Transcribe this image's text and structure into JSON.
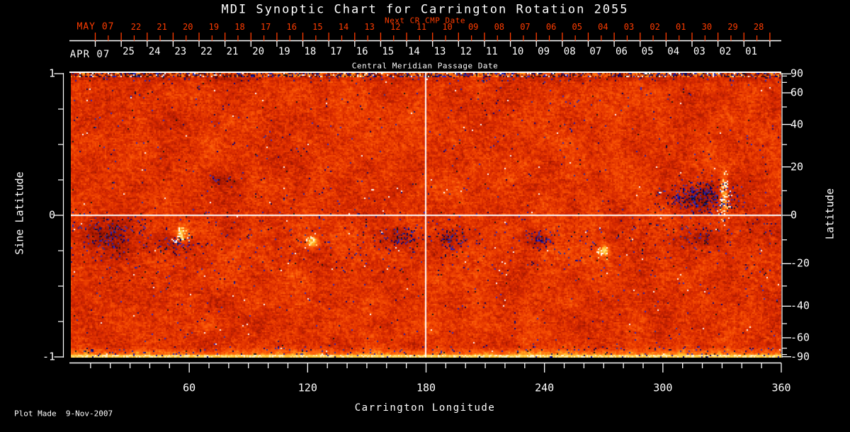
{
  "title": "MDI Synoptic Chart for Carrington Rotation 2055",
  "footer": "Plot Made  9-Nov-2007",
  "colors": {
    "background": "#000000",
    "text": "#ffffff",
    "accent_red": "#ff3c00",
    "magnetogram_base": "#e84400",
    "negative_flux": "#1c1cb0",
    "positive_flux": "#ffffff"
  },
  "top_axis": {
    "next_cr_label": "Next CR CMP Date",
    "red_month": "MAY 07",
    "red_days": [
      "22",
      "21",
      "20",
      "19",
      "18",
      "17",
      "16",
      "15",
      "14",
      "13",
      "12",
      "11",
      "10",
      "09",
      "08",
      "07",
      "06",
      "05",
      "04",
      "03",
      "02",
      "01",
      "30",
      "29",
      "28"
    ],
    "white_month": "APR 07",
    "white_days": [
      "25",
      "24",
      "23",
      "22",
      "21",
      "20",
      "19",
      "18",
      "17",
      "16",
      "15",
      "14",
      "13",
      "12",
      "11",
      "10",
      "09",
      "08",
      "07",
      "06",
      "05",
      "04",
      "03",
      "02",
      "01"
    ],
    "axis_title": "Central Meridian Passage Date"
  },
  "left_axis": {
    "title": "Sine Latitude",
    "ticks": [
      "1",
      "0",
      "-1"
    ]
  },
  "right_axis": {
    "title": "Latitude",
    "ticks": [
      "90",
      "60",
      "40",
      "20",
      "0",
      "-20",
      "-40",
      "-60",
      "-90"
    ]
  },
  "bottom_axis": {
    "title": "Carrington Longitude",
    "ticks": [
      "60",
      "120",
      "180",
      "240",
      "300",
      "360"
    ]
  },
  "chart_data": {
    "type": "heatmap",
    "title": "MDI Synoptic Chart for Carrington Rotation 2055",
    "xlabel": "Carrington Longitude",
    "ylabel_left": "Sine Latitude",
    "ylabel_right": "Latitude",
    "xlim": [
      0,
      360
    ],
    "x_ticks": [
      60,
      120,
      180,
      240,
      300,
      360
    ],
    "x_minor_tick_step_deg": 10,
    "ylim_sine_latitude": [
      -1,
      1
    ],
    "y_ticks_sine_latitude": [
      1,
      0,
      -1
    ],
    "y_minor_tick_step_sine": 0.25,
    "y_ticks_latitude_deg": [
      90,
      60,
      40,
      20,
      0,
      -20,
      -40,
      -60,
      -90
    ],
    "grid": {
      "horizontal_line_at_sine_latitude": 0,
      "vertical_line_at_longitude": 180
    },
    "legend_position": "none",
    "colormap_meaning": "orange/red = weak field noise, yellow/white = positive magnetic flux, blue/black = negative magnetic flux",
    "cmp_date_axis": {
      "current_rotation_month": "APR 07",
      "current_rotation_days": [
        "25",
        "24",
        "23",
        "22",
        "21",
        "20",
        "19",
        "18",
        "17",
        "16",
        "15",
        "14",
        "13",
        "12",
        "11",
        "10",
        "09",
        "08",
        "07",
        "06",
        "05",
        "04",
        "03",
        "02",
        "01"
      ],
      "next_rotation_month": "MAY 07",
      "next_rotation_days": [
        "22",
        "21",
        "20",
        "19",
        "18",
        "17",
        "16",
        "15",
        "14",
        "13",
        "12",
        "11",
        "10",
        "09",
        "08",
        "07",
        "06",
        "05",
        "04",
        "03",
        "02",
        "01",
        "30",
        "29",
        "28"
      ]
    },
    "notable_features": [
      {
        "longitude": 318,
        "latitude": 10,
        "description": "large bipolar active region: dark negative-flux sunspot cluster beside bright positive plage streak"
      },
      {
        "longitude": 20,
        "latitude": -10,
        "description": "scattered negative flux patches"
      },
      {
        "longitude": 55,
        "latitude": -9,
        "description": "small bright plage"
      },
      {
        "longitude": 168,
        "latitude": -11,
        "description": "dark flux patches"
      },
      {
        "longitude": 191,
        "latitude": -11,
        "description": "dark flux patches"
      },
      {
        "longitude": 237,
        "latitude": -11,
        "description": "dark flux patch"
      },
      {
        "longitude": 270,
        "latitude": -13,
        "description": "small bright patch"
      },
      {
        "longitude": -999,
        "latitude": 0,
        "description": "noisy dark band along top edge and bright yellow noisy band along bottom edge (polar projection noise)"
      }
    ],
    "made_on": "9-Nov-2007"
  }
}
